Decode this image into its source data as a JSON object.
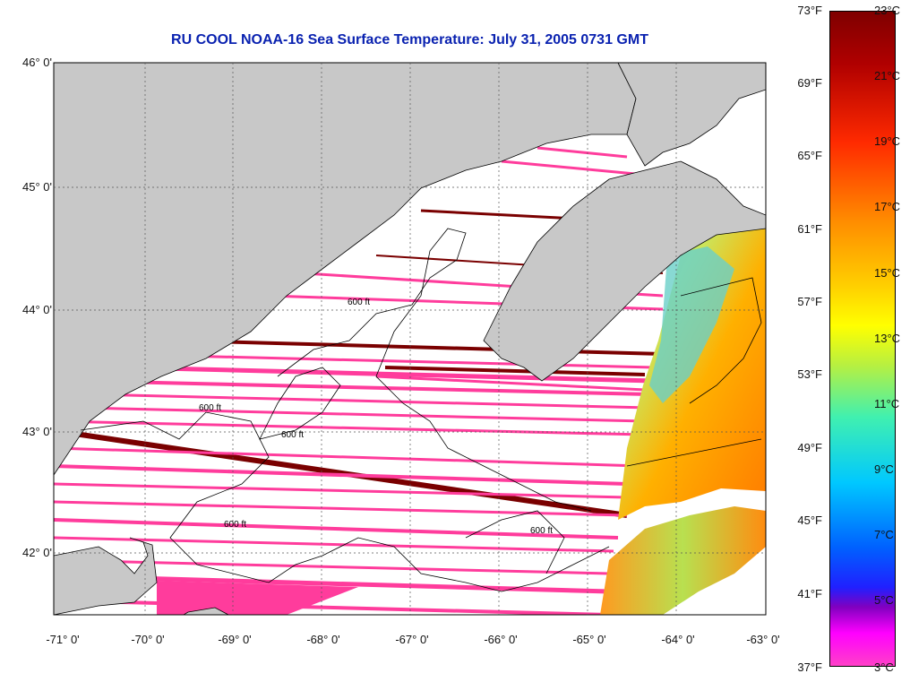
{
  "title": "RU COOL  NOAA-16  Sea Surface Temperature:  July 31, 2005 0731 GMT",
  "lat_labels": [
    "46° 0'",
    "45° 0'",
    "44° 0'",
    "43° 0'",
    "42° 0'"
  ],
  "lon_labels": [
    "-71° 0'",
    "-70° 0'",
    "-69° 0'",
    "-68° 0'",
    "-67° 0'",
    "-66° 0'",
    "-65° 0'",
    "-64° 0'",
    "-63° 0'"
  ],
  "colorbar": {
    "f_labels": [
      "73°F",
      "69°F",
      "65°F",
      "61°F",
      "57°F",
      "53°F",
      "49°F",
      "45°F",
      "41°F",
      "37°F"
    ],
    "c_labels": [
      "23°C",
      "21°C",
      "19°C",
      "17°C",
      "15°C",
      "13°C",
      "11°C",
      "9°C",
      "7°C",
      "5°C",
      "3°C"
    ]
  },
  "contour_label": "600 ft",
  "colors": {
    "land": "#c8c8c8",
    "stripe_pink": "#ff3c9c",
    "stripe_dark": "#7a0000",
    "title": "#0a22b0"
  }
}
